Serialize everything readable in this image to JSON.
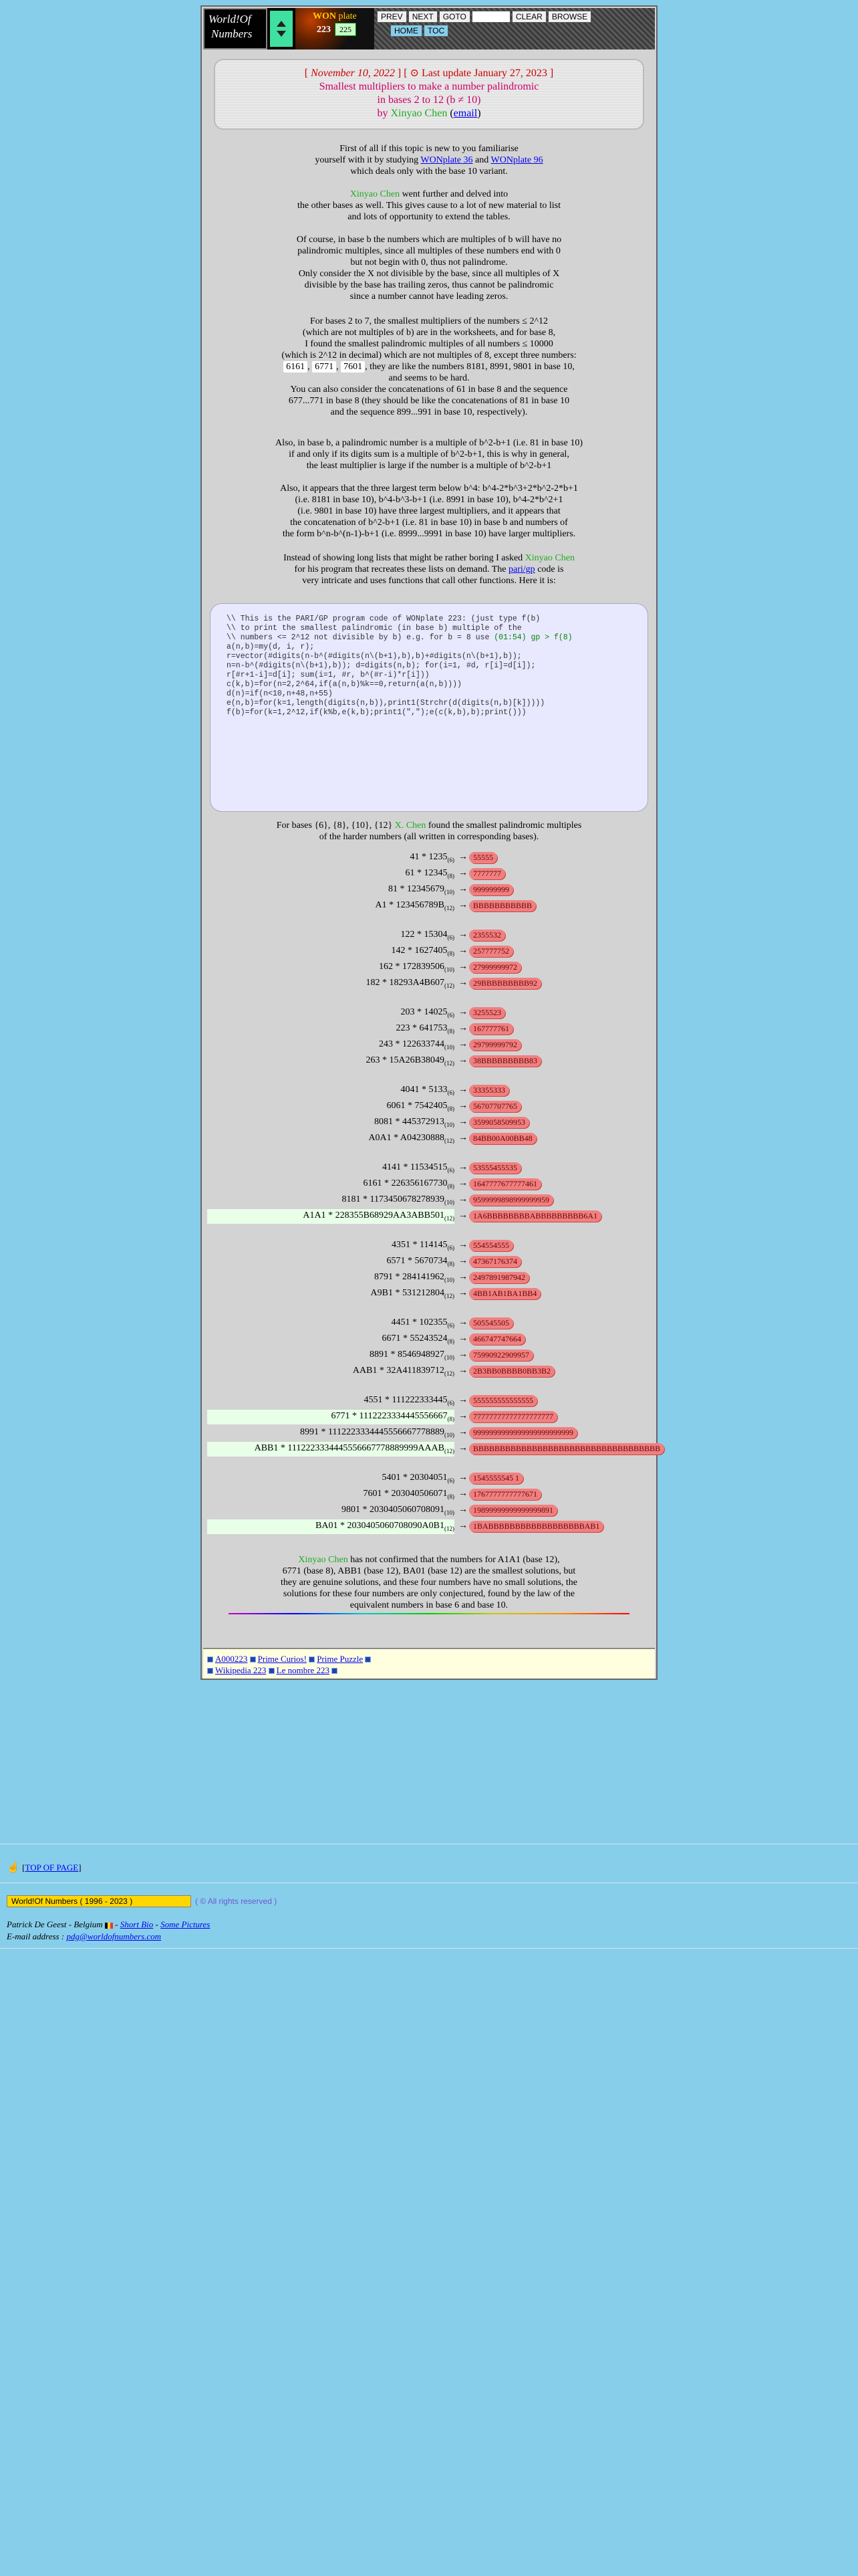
{
  "nav": {
    "logo_line1": "World!Of",
    "logo_line2": "Numbers",
    "won_label": "WON",
    "plate_label": "plate",
    "plate_number": "223",
    "jump_number": "225",
    "buttons": [
      "PREV",
      "NEXT",
      "GOTO",
      "CLEAR",
      "BROWSE"
    ],
    "buttons2": [
      "HOME",
      "TOC"
    ]
  },
  "header": {
    "date": "November 10, 2022",
    "update": "Last update January 27, 2023",
    "title1": "Smallest multipliers to make a number palindromic",
    "title2": "in bases 2 to 12 (b ≠ 10)",
    "by": "by",
    "author": "Xinyao Chen",
    "email": "email"
  },
  "intro": {
    "p1a": "First of all if this topic is new to you familiarise",
    "p1b": "yourself with it by studying",
    "link1": "WONplate 36",
    "and": "and",
    "link2": "WONplate 96",
    "p1c": "which deals only with the base 10 variant.",
    "p2name": "Xinyao Chen",
    "p2a": "went further and delved into",
    "p2b": "the other bases as well. This gives cause to a lot of new material to list",
    "p2c": "and lots of opportunity to extend the tables.",
    "p3": [
      "Of course, in base b the numbers which are multiples of b will have no",
      "palindromic multiples, since all multiples of these numbers end with 0",
      "but not begin with 0, thus not palindrome.",
      "Only consider the X not divisible by the base, since all multiples of X",
      "divisible by the base has trailing zeros, thus cannot be palindromic",
      "since a number cannot have leading zeros."
    ],
    "p4": [
      "For bases 2 to 7, the smallest multipliers of the numbers ≤ 2^12",
      "(which are not multiples of b) are in the worksheets, and for base 8,",
      "I found the smallest palindromic multiples of all numbers ≤ 10000",
      "(which is 2^12 in decimal) which are not multiples of 8, except three numbers:"
    ],
    "p4nums": [
      "6161",
      "6771",
      "7601"
    ],
    "p4b": ", they are like the numbers 8181, 8991, 9801 in base 10,",
    "p4c": [
      "and seems to be hard.",
      "You can also consider the concatenations of 61 in base 8 and the sequence",
      "677...771 in base 8 (they should be like the concatenations of 81 in base 10",
      "and the sequence 899...991 in base 10, respectively)."
    ],
    "p5": [
      "Also, in base b, a palindromic number is a multiple of b^2-b+1 (i.e. 81 in base 10)",
      "if and only if its digits sum is a multiple of b^2-b+1, this is why in general,",
      "the least multiplier is large if the number is a multiple of b^2-b+1"
    ],
    "p6": [
      "Also, it appears that the three largest term below b^4: b^4-2*b^3+2*b^2-2*b+1",
      "(i.e. 8181 in base 10), b^4-b^3-b+1 (i.e. 8991 in base 10), b^4-2*b^2+1",
      "(i.e. 9801 in base 10) have three largest multipliers, and it appears that",
      "the concatenation of b^2-b+1 (i.e. 81 in base 10) in base b and numbers of",
      "the form b^n-b^(n-1)-b+1 (i.e. 8999...9991 in base 10) have larger multipliers."
    ],
    "p7a": "Instead of showing long lists that might be rather boring I asked",
    "p7name": "Xinyao Chen",
    "p7b": "for his program that recreates these lists on demand. The",
    "p7link": "pari/gp",
    "p7c": "code is",
    "p7d": "very intricate and uses functions that call other functions. Here it is:"
  },
  "code": {
    "lines": [
      "\\\\ This is the PARI/GP program code of WONplate 223: (just type f(b)",
      "\\\\ to print the smallest palindromic (in base b) multiple of the",
      "\\\\ numbers <= 2^12 not divisible by b) e.g. for b = 8 use ",
      "",
      "a(n,b)=my(d, i, r);",
      "r=vector(#digits(n-b^(#digits(n\\(b+1),b),b)+#digits(n\\(b+1),b));",
      "n=n-b^(#digits(n\\(b+1),b)); d=digits(n,b); for(i=1, #d, r[i]=d[i]);",
      "r[#r+1-i]=d[i]; sum(i=1, #r, b^(#r-i)*r[i]))",
      "",
      "c(k,b)=for(n=2,2^64,if(a(n,b)%k==0,return(a(n,b))))",
      "",
      "d(n)=if(n<10,n+48,n+55)",
      "",
      "e(n,b)=for(k=1,length(digits(n,b)),print1(Strchr(d(digits(n,b)[k]))))",
      "",
      "f(b)=for(k=1,2^12,if(k%b,e(k,b);print1(\",\");e(c(k,b),b);print()))"
    ],
    "example": "(01:54) gp > f(8)"
  },
  "results_intro": {
    "a": "For bases {6}, {8}, {10}, {12}",
    "name": "X. Chen",
    "b": "found the smallest palindromic multiples",
    "c": "of the harder numbers (all written in corresponding bases)."
  },
  "groups": [
    [
      {
        "lhs": "41 * 1235",
        "base": "(6)",
        "rhs": "55555",
        "hl": false
      },
      {
        "lhs": "61 * 12345",
        "base": "(8)",
        "rhs": "7777777",
        "hl": false
      },
      {
        "lhs": "81 * 12345679",
        "base": "(10)",
        "rhs": "999999999",
        "hl": false
      },
      {
        "lhs": "A1 * 123456789B",
        "base": "(12)",
        "rhs": "BBBBBBBBBBB",
        "hl": false
      }
    ],
    [
      {
        "lhs": "122 * 15304",
        "base": "(6)",
        "rhs": "2355532",
        "hl": false
      },
      {
        "lhs": "142 * 1627405",
        "base": "(8)",
        "rhs": "257777752",
        "hl": false
      },
      {
        "lhs": "162 * 172839506",
        "base": "(10)",
        "rhs": "27999999972",
        "hl": false
      },
      {
        "lhs": "182 * 18293A4B607",
        "base": "(12)",
        "rhs": "29BBBBBBBBB92",
        "hl": false
      }
    ],
    [
      {
        "lhs": "203 * 14025",
        "base": "(6)",
        "rhs": "3255523",
        "hl": false
      },
      {
        "lhs": "223 * 641753",
        "base": "(8)",
        "rhs": "167777761",
        "hl": false
      },
      {
        "lhs": "243 * 122633744",
        "base": "(10)",
        "rhs": "29799999792",
        "hl": false
      },
      {
        "lhs": "263 * 15A26B38049",
        "base": "(12)",
        "rhs": "38BBBBBBBBB83",
        "hl": false
      }
    ],
    [
      {
        "lhs": "4041 * 5133",
        "base": "(6)",
        "rhs": "33355333",
        "hl": false
      },
      {
        "lhs": "6061 * 7542405",
        "base": "(8)",
        "rhs": "56707707765",
        "hl": false
      },
      {
        "lhs": "8081 * 445372913",
        "base": "(10)",
        "rhs": "3599058509953",
        "hl": false
      },
      {
        "lhs": "A0A1 * A04230888",
        "base": "(12)",
        "rhs": "84BB00A00BB48",
        "hl": false
      }
    ],
    [
      {
        "lhs": "4141 * 11534515",
        "base": "(6)",
        "rhs": "53555455535",
        "hl": false
      },
      {
        "lhs": "6161 * 226356167730",
        "base": "(8)",
        "rhs": "1647777677777461",
        "hl": false
      },
      {
        "lhs": "8181 * 1173450678278939",
        "base": "(10)",
        "rhs": "9599999898999999959",
        "hl": false
      },
      {
        "lhs": "A1A1 * 228355B68929AA3ABB501",
        "base": "(12)",
        "rhs": "1A6BBBBBBBBABBBBBBBBB6A1",
        "hl": true
      }
    ],
    [
      {
        "lhs": "4351 * 114145",
        "base": "(6)",
        "rhs": "554554555",
        "hl": false
      },
      {
        "lhs": "6571 * 5670734",
        "base": "(8)",
        "rhs": "47367176374",
        "hl": false
      },
      {
        "lhs": "8791 * 284141962",
        "base": "(10)",
        "rhs": "2497891987942",
        "hl": false
      },
      {
        "lhs": "A9B1 * 531212804",
        "base": "(12)",
        "rhs": "4BB1AB1BA1BB4",
        "hl": false
      }
    ],
    [
      {
        "lhs": "4451 * 102355",
        "base": "(6)",
        "rhs": "505545505",
        "hl": false
      },
      {
        "lhs": "6671 * 55243524",
        "base": "(8)",
        "rhs": "466747747664",
        "hl": false
      },
      {
        "lhs": "8891 * 8546948927",
        "base": "(10)",
        "rhs": "75990922909957",
        "hl": false
      },
      {
        "lhs": "AAB1 * 32A411839712",
        "base": "(12)",
        "rhs": "2B3BB0BBBB0BB3B2",
        "hl": false
      }
    ],
    [
      {
        "lhs": "4551 * 111222333445",
        "base": "(6)",
        "rhs": "555555555555555",
        "hl": false
      },
      {
        "lhs": "6771 * 1112223334445556667",
        "base": "(8)",
        "rhs": "77777777777777777777",
        "hl": true
      },
      {
        "lhs": "8991 * 1112223334445556667778889",
        "base": "(10)",
        "rhs": "9999999999999999999999999",
        "hl": false
      },
      {
        "lhs": "ABB1 * 1112223334445556667778889999AAAB",
        "base": "(12)",
        "rhs": "BBBBBBBBBBBBBBBBBBBBBBBBBBBBBBBBBBB",
        "hl": true
      }
    ],
    [
      {
        "lhs": "5401 * 20304051",
        "base": "(6)",
        "rhs": "1545555545 1",
        "hl": false
      },
      {
        "lhs": "7601 * 203040506071",
        "base": "(8)",
        "rhs": "1767777777777671",
        "hl": false
      },
      {
        "lhs": "9801 * 2030405060708091",
        "base": "(10)",
        "rhs": "19899999999999999891",
        "hl": false
      },
      {
        "lhs": "BA01 * 2030405060708090A0B1",
        "base": "(12)",
        "rhs": "1BABBBBBBBBBBBBBBBBBBAB1",
        "hl": true
      }
    ]
  ],
  "conclusion": {
    "name": "Xinyao Chen",
    "a": "has not confirmed that the numbers for A1A1 (base 12),",
    "b": "6771 (base 8), ABB1 (base 12), BA01 (base 12) are the smallest solutions, but",
    "c": "they are genuine solutions, and these four numbers have no small solutions, the",
    "d": "solutions for these four numbers are only conjectured, found by the law of the",
    "e": "equivalent numbers in base 6 and base 10."
  },
  "refs": {
    "row1": [
      "A000223",
      "Prime Curios!",
      "Prime Puzzle"
    ],
    "row2": [
      "Wikipedia 223",
      "Le nombre 223"
    ]
  },
  "footer": {
    "top": "TOP OF PAGE",
    "copyright": "World!Of Numbers  ( 1996 - 2023 )",
    "rights": "( © All rights reserved )",
    "author_line": "Patrick De Geest - Belgium",
    "short_bio": "Short Bio",
    "dash": " - ",
    "some_pictures": "Some Pictures",
    "email_label": "E-mail address :",
    "email": "pdg@worldofnumbers.com"
  },
  "colors": {
    "background": "#87ceeb",
    "frame": "#d3d3d3",
    "highlight": "#f08080",
    "accent_green": "#22aa22"
  }
}
